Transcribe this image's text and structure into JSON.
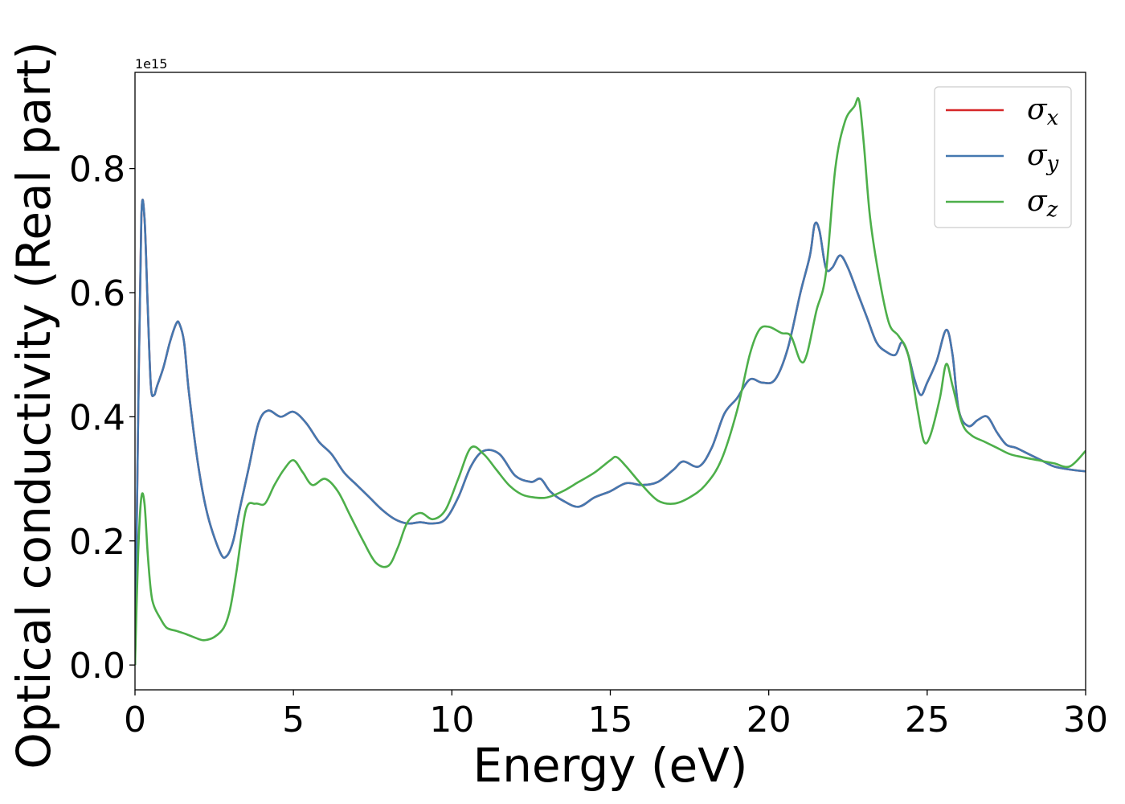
{
  "chart_data": {
    "type": "line",
    "title": "",
    "xlabel": "Energy (eV)",
    "ylabel": "Optical conductivity (Real part)",
    "y_offset_text": "1e15",
    "xlim": [
      0,
      30
    ],
    "ylim": [
      -0.04,
      0.955
    ],
    "y_scale_factor": 1000000000000000.0,
    "xticks": [
      0,
      5,
      10,
      15,
      20,
      25,
      30
    ],
    "xtick_labels": [
      "0",
      "5",
      "10",
      "15",
      "20",
      "25",
      "30"
    ],
    "yticks": [
      0.0,
      0.2,
      0.4,
      0.6,
      0.8
    ],
    "ytick_labels": [
      "0.0",
      "0.2",
      "0.4",
      "0.6",
      "0.8"
    ],
    "grid": false,
    "legend_position": "upper right",
    "series": [
      {
        "name": "x",
        "legend_label": "σx",
        "color": "#d62728",
        "x": [
          0,
          0.1,
          0.2,
          0.3,
          0.4,
          0.5,
          0.6,
          0.7,
          0.9,
          1.1,
          1.3,
          1.4,
          1.55,
          1.7,
          2.0,
          2.3,
          2.7,
          2.9,
          3.1,
          3.3,
          3.6,
          3.9,
          4.2,
          4.6,
          5.0,
          5.4,
          5.8,
          6.2,
          6.6,
          7.0,
          7.4,
          7.8,
          8.2,
          8.6,
          9.0,
          9.4,
          9.8,
          10.2,
          10.6,
          11.0,
          11.5,
          12.0,
          12.5,
          12.8,
          13.1,
          13.5,
          14.0,
          14.5,
          15.0,
          15.5,
          16.0,
          16.5,
          17.0,
          17.3,
          17.8,
          18.2,
          18.6,
          19.0,
          19.4,
          19.8,
          20.2,
          20.6,
          21.0,
          21.3,
          21.45,
          21.6,
          21.8,
          22.0,
          22.25,
          22.5,
          22.8,
          23.1,
          23.4,
          23.7,
          24.0,
          24.2,
          24.4,
          24.6,
          24.8,
          25.0,
          25.3,
          25.6,
          25.8,
          26.0,
          26.3,
          26.6,
          26.9,
          27.2,
          27.5,
          27.8,
          28.2,
          28.6,
          29.0,
          29.5,
          30.0
        ],
        "y": [
          0.0,
          0.4,
          0.72,
          0.72,
          0.58,
          0.45,
          0.435,
          0.45,
          0.48,
          0.52,
          0.55,
          0.55,
          0.52,
          0.44,
          0.32,
          0.24,
          0.18,
          0.176,
          0.2,
          0.25,
          0.32,
          0.39,
          0.41,
          0.4,
          0.408,
          0.39,
          0.36,
          0.34,
          0.31,
          0.29,
          0.27,
          0.25,
          0.235,
          0.228,
          0.23,
          0.228,
          0.235,
          0.27,
          0.32,
          0.345,
          0.34,
          0.305,
          0.295,
          0.3,
          0.28,
          0.265,
          0.255,
          0.27,
          0.28,
          0.293,
          0.29,
          0.295,
          0.315,
          0.328,
          0.32,
          0.35,
          0.405,
          0.43,
          0.46,
          0.455,
          0.46,
          0.51,
          0.6,
          0.66,
          0.71,
          0.7,
          0.64,
          0.64,
          0.66,
          0.64,
          0.6,
          0.56,
          0.52,
          0.505,
          0.5,
          0.52,
          0.5,
          0.46,
          0.435,
          0.455,
          0.49,
          0.54,
          0.5,
          0.41,
          0.385,
          0.395,
          0.4,
          0.375,
          0.355,
          0.35,
          0.34,
          0.33,
          0.32,
          0.315,
          0.312
        ]
      },
      {
        "name": "y",
        "legend_label": "σy",
        "color": "#4478b0",
        "x": [
          0,
          0.1,
          0.2,
          0.3,
          0.4,
          0.5,
          0.6,
          0.7,
          0.9,
          1.1,
          1.3,
          1.4,
          1.55,
          1.7,
          2.0,
          2.3,
          2.7,
          2.9,
          3.1,
          3.3,
          3.6,
          3.9,
          4.2,
          4.6,
          5.0,
          5.4,
          5.8,
          6.2,
          6.6,
          7.0,
          7.4,
          7.8,
          8.2,
          8.6,
          9.0,
          9.4,
          9.8,
          10.2,
          10.6,
          11.0,
          11.5,
          12.0,
          12.5,
          12.8,
          13.1,
          13.5,
          14.0,
          14.5,
          15.0,
          15.5,
          16.0,
          16.5,
          17.0,
          17.3,
          17.8,
          18.2,
          18.6,
          19.0,
          19.4,
          19.8,
          20.2,
          20.6,
          21.0,
          21.3,
          21.45,
          21.6,
          21.8,
          22.0,
          22.25,
          22.5,
          22.8,
          23.1,
          23.4,
          23.7,
          24.0,
          24.2,
          24.4,
          24.6,
          24.8,
          25.0,
          25.3,
          25.6,
          25.8,
          26.0,
          26.3,
          26.6,
          26.9,
          27.2,
          27.5,
          27.8,
          28.2,
          28.6,
          29.0,
          29.5,
          30.0
        ],
        "y": [
          0.0,
          0.4,
          0.72,
          0.72,
          0.58,
          0.45,
          0.435,
          0.45,
          0.48,
          0.52,
          0.55,
          0.55,
          0.52,
          0.44,
          0.32,
          0.24,
          0.18,
          0.176,
          0.2,
          0.25,
          0.32,
          0.39,
          0.41,
          0.4,
          0.408,
          0.39,
          0.36,
          0.34,
          0.31,
          0.29,
          0.27,
          0.25,
          0.235,
          0.228,
          0.23,
          0.228,
          0.235,
          0.27,
          0.32,
          0.345,
          0.34,
          0.305,
          0.295,
          0.3,
          0.28,
          0.265,
          0.255,
          0.27,
          0.28,
          0.293,
          0.29,
          0.295,
          0.315,
          0.328,
          0.32,
          0.35,
          0.405,
          0.43,
          0.46,
          0.455,
          0.46,
          0.51,
          0.6,
          0.66,
          0.71,
          0.7,
          0.64,
          0.64,
          0.66,
          0.64,
          0.6,
          0.56,
          0.52,
          0.505,
          0.5,
          0.52,
          0.5,
          0.46,
          0.435,
          0.455,
          0.49,
          0.54,
          0.5,
          0.41,
          0.385,
          0.395,
          0.4,
          0.375,
          0.355,
          0.35,
          0.34,
          0.33,
          0.32,
          0.315,
          0.312
        ]
      },
      {
        "name": "z",
        "legend_label": "σz",
        "color": "#4daf4a",
        "x": [
          0,
          0.1,
          0.2,
          0.3,
          0.4,
          0.5,
          0.6,
          0.8,
          1.0,
          1.3,
          1.6,
          2.0,
          2.2,
          2.5,
          2.8,
          3.0,
          3.2,
          3.5,
          3.8,
          4.1,
          4.4,
          4.7,
          5.0,
          5.3,
          5.6,
          6.0,
          6.4,
          6.8,
          7.2,
          7.6,
          8.0,
          8.3,
          8.6,
          9.0,
          9.4,
          9.8,
          10.2,
          10.6,
          11.0,
          11.4,
          11.8,
          12.2,
          12.6,
          13.0,
          13.5,
          14.0,
          14.5,
          15.0,
          15.2,
          15.5,
          16.0,
          16.5,
          17.0,
          17.5,
          18.0,
          18.5,
          19.0,
          19.4,
          19.7,
          20.0,
          20.4,
          20.7,
          21.0,
          21.2,
          21.5,
          21.8,
          22.1,
          22.4,
          22.7,
          22.85,
          23.0,
          23.2,
          23.5,
          23.8,
          24.1,
          24.4,
          24.7,
          24.9,
          25.1,
          25.4,
          25.6,
          25.8,
          26.1,
          26.4,
          26.8,
          27.2,
          27.6,
          28.0,
          28.5,
          29.0,
          29.5,
          30.0
        ],
        "y": [
          0.0,
          0.18,
          0.27,
          0.26,
          0.18,
          0.12,
          0.095,
          0.075,
          0.06,
          0.055,
          0.05,
          0.042,
          0.04,
          0.045,
          0.06,
          0.09,
          0.15,
          0.25,
          0.26,
          0.26,
          0.29,
          0.315,
          0.33,
          0.31,
          0.29,
          0.3,
          0.28,
          0.24,
          0.2,
          0.165,
          0.16,
          0.19,
          0.23,
          0.245,
          0.235,
          0.25,
          0.3,
          0.35,
          0.34,
          0.315,
          0.29,
          0.275,
          0.27,
          0.27,
          0.28,
          0.295,
          0.31,
          0.33,
          0.335,
          0.32,
          0.29,
          0.265,
          0.26,
          0.27,
          0.29,
          0.33,
          0.41,
          0.5,
          0.54,
          0.545,
          0.535,
          0.53,
          0.49,
          0.5,
          0.57,
          0.63,
          0.8,
          0.875,
          0.9,
          0.91,
          0.84,
          0.72,
          0.62,
          0.55,
          0.53,
          0.5,
          0.41,
          0.36,
          0.37,
          0.43,
          0.485,
          0.45,
          0.39,
          0.37,
          0.36,
          0.35,
          0.34,
          0.335,
          0.33,
          0.325,
          0.32,
          0.345
        ]
      }
    ]
  }
}
